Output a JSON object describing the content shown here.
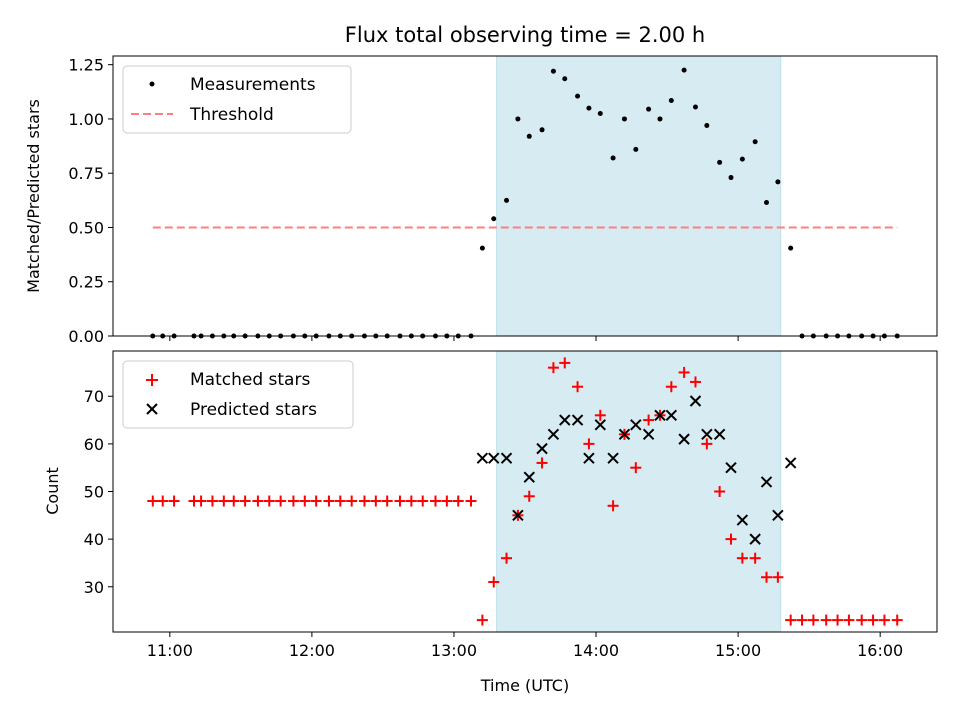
{
  "chart_data": [
    {
      "type": "scatter",
      "title": "Flux total observing time = 2.00 h",
      "xlabel": "",
      "ylabel": "Matched/Predicted stars",
      "xlim": [
        10.6,
        16.4
      ],
      "ylim": [
        0.0,
        1.29
      ],
      "yticks": [
        0.0,
        0.25,
        0.5,
        0.75,
        1.0,
        1.25
      ],
      "ytick_labels": [
        "0.00",
        "0.25",
        "0.50",
        "0.75",
        "1.00",
        "1.25"
      ],
      "xticks": [
        11,
        12,
        13,
        14,
        15,
        16
      ],
      "shaded_interval": [
        13.3,
        15.3
      ],
      "legend_position": "top-left",
      "series": [
        {
          "name": "Measurements",
          "marker": "dot",
          "color": "#000000",
          "x": [
            10.88,
            10.95,
            11.03,
            11.17,
            11.22,
            11.3,
            11.38,
            11.45,
            11.53,
            11.62,
            11.7,
            11.78,
            11.87,
            11.95,
            12.03,
            12.12,
            12.2,
            12.28,
            12.37,
            12.45,
            12.53,
            12.62,
            12.7,
            12.78,
            12.87,
            12.95,
            13.03,
            13.12,
            13.2,
            13.28,
            13.37,
            13.45,
            13.53,
            13.62,
            13.7,
            13.78,
            13.87,
            13.95,
            14.03,
            14.12,
            14.2,
            14.28,
            14.37,
            14.45,
            14.53,
            14.62,
            14.7,
            14.78,
            14.87,
            14.95,
            15.03,
            15.12,
            15.2,
            15.28,
            15.37,
            15.45,
            15.53,
            15.62,
            15.7,
            15.78,
            15.87,
            15.95,
            16.03,
            16.12
          ],
          "y": [
            0,
            0,
            0,
            0,
            0,
            0,
            0,
            0,
            0,
            0,
            0,
            0,
            0,
            0,
            0,
            0,
            0,
            0,
            0,
            0,
            0,
            0,
            0,
            0,
            0,
            0,
            0,
            0,
            0.405,
            0.54,
            0.625,
            1.0,
            0.92,
            0.95,
            1.22,
            1.185,
            1.105,
            1.05,
            1.025,
            0.82,
            1.0,
            0.86,
            1.045,
            1.0,
            1.085,
            1.225,
            1.055,
            0.97,
            0.8,
            0.73,
            0.815,
            0.895,
            0.615,
            0.71,
            0.405,
            0,
            0,
            0,
            0,
            0,
            0,
            0,
            0,
            0
          ]
        },
        {
          "name": "Threshold",
          "style": "dashed",
          "color": "#ff7f7f",
          "x": [
            10.88,
            16.12
          ],
          "y": [
            0.5,
            0.5
          ]
        }
      ]
    },
    {
      "type": "scatter",
      "title": "",
      "xlabel": "Time (UTC)",
      "ylabel": "Count",
      "xlim": [
        10.6,
        16.4
      ],
      "ylim": [
        20.5,
        79.5
      ],
      "yticks": [
        30,
        40,
        50,
        60,
        70
      ],
      "ytick_labels": [
        "30",
        "40",
        "50",
        "60",
        "70"
      ],
      "xticks": [
        11,
        12,
        13,
        14,
        15,
        16
      ],
      "xtick_labels": [
        "11:00",
        "12:00",
        "13:00",
        "14:00",
        "15:00",
        "16:00"
      ],
      "shaded_interval": [
        13.3,
        15.3
      ],
      "legend_position": "top-left",
      "series": [
        {
          "name": "Matched stars",
          "marker": "plus",
          "color": "#ff0000",
          "x": [
            10.88,
            10.95,
            11.03,
            11.17,
            11.22,
            11.3,
            11.38,
            11.45,
            11.53,
            11.62,
            11.7,
            11.78,
            11.87,
            11.95,
            12.03,
            12.12,
            12.2,
            12.28,
            12.37,
            12.45,
            12.53,
            12.62,
            12.7,
            12.78,
            12.87,
            12.95,
            13.03,
            13.12,
            13.2,
            13.28,
            13.37,
            13.45,
            13.53,
            13.62,
            13.7,
            13.78,
            13.87,
            13.95,
            14.03,
            14.12,
            14.2,
            14.28,
            14.37,
            14.45,
            14.53,
            14.62,
            14.7,
            14.78,
            14.87,
            14.95,
            15.03,
            15.12,
            15.2,
            15.28,
            15.37,
            15.45,
            15.53,
            15.62,
            15.7,
            15.78,
            15.87,
            15.95,
            16.03,
            16.12
          ],
          "y": [
            48,
            48,
            48,
            48,
            48,
            48,
            48,
            48,
            48,
            48,
            48,
            48,
            48,
            48,
            48,
            48,
            48,
            48,
            48,
            48,
            48,
            48,
            48,
            48,
            48,
            48,
            48,
            48,
            23,
            31,
            36,
            45,
            49,
            56,
            76,
            77,
            72,
            60,
            66,
            47,
            62,
            55,
            65,
            66,
            72,
            75,
            73,
            60,
            50,
            40,
            36,
            36,
            32,
            32,
            23,
            23,
            23,
            23,
            23,
            23,
            23,
            23,
            23,
            23
          ]
        },
        {
          "name": "Predicted stars",
          "marker": "x",
          "color": "#000000",
          "x": [
            13.2,
            13.28,
            13.37,
            13.45,
            13.53,
            13.62,
            13.7,
            13.78,
            13.87,
            13.95,
            14.03,
            14.12,
            14.2,
            14.28,
            14.37,
            14.45,
            14.53,
            14.62,
            14.7,
            14.78,
            14.87,
            14.95,
            15.03,
            15.12,
            15.2,
            15.28,
            15.37
          ],
          "y": [
            57,
            57,
            57,
            45,
            53,
            59,
            62,
            65,
            65,
            57,
            64,
            57,
            62,
            64,
            62,
            66,
            66,
            61,
            69,
            62,
            62,
            55,
            44,
            40,
            52,
            45,
            56
          ]
        }
      ]
    }
  ]
}
